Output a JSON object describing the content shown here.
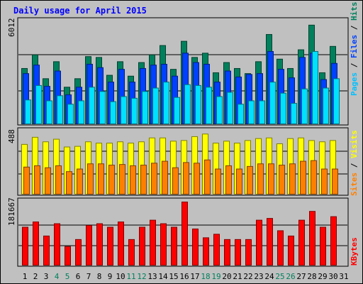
{
  "chart_data": [
    {
      "type": "bar",
      "panel": "hits-files-pages",
      "title": "Daily usage for April 2015",
      "max_label": "6012",
      "categories": [
        "1",
        "2",
        "3",
        "4",
        "5",
        "6",
        "7",
        "8",
        "9",
        "10",
        "11",
        "12",
        "13",
        "14",
        "15",
        "16",
        "17",
        "18",
        "19",
        "20",
        "21",
        "22",
        "23",
        "24",
        "25",
        "26",
        "27",
        "28",
        "29",
        "30",
        "31"
      ],
      "weekend_days": [
        "4",
        "5",
        "11",
        "12",
        "18",
        "19",
        "25",
        "26"
      ],
      "ylim": [
        0,
        6012
      ],
      "series": [
        {
          "name": "Hits",
          "color": "#00805c",
          "values": [
            3300,
            4100,
            2700,
            3700,
            2200,
            2700,
            4000,
            3950,
            2900,
            3700,
            2850,
            3650,
            4100,
            4650,
            3250,
            4900,
            3950,
            4200,
            3050,
            3650,
            3300,
            3000,
            3700,
            5300,
            3850,
            3300,
            4400,
            5850,
            3050,
            4600,
            0
          ]
        },
        {
          "name": "Files",
          "color": "#0040ff",
          "values": [
            3000,
            3500,
            2250,
            3150,
            1750,
            2200,
            3550,
            3350,
            2500,
            3250,
            2500,
            3300,
            3500,
            3550,
            2850,
            4200,
            3650,
            3550,
            2500,
            3150,
            2800,
            2950,
            3000,
            4300,
            3250,
            2750,
            3950,
            4200,
            2650,
            3600,
            0
          ]
        },
        {
          "name": "Pages",
          "color": "#00e0ff",
          "values": [
            1450,
            2300,
            1400,
            1700,
            1200,
            1400,
            2200,
            1950,
            1350,
            1650,
            1550,
            1950,
            2150,
            2500,
            1600,
            2350,
            2300,
            2200,
            1650,
            1900,
            1200,
            1400,
            1400,
            2500,
            1850,
            1250,
            2100,
            4300,
            2150,
            2700,
            0
          ]
        }
      ]
    },
    {
      "type": "bar",
      "panel": "visits-sites",
      "max_label": "488",
      "categories": [
        "1",
        "2",
        "3",
        "4",
        "5",
        "6",
        "7",
        "8",
        "9",
        "10",
        "11",
        "12",
        "13",
        "14",
        "15",
        "16",
        "17",
        "18",
        "19",
        "20",
        "21",
        "22",
        "23",
        "24",
        "25",
        "26",
        "27",
        "28",
        "29",
        "30",
        "31"
      ],
      "ylim": [
        0,
        488
      ],
      "series": [
        {
          "name": "Visits",
          "color": "#ffff00",
          "values": [
            390,
            445,
            410,
            430,
            370,
            375,
            410,
            400,
            400,
            410,
            400,
            410,
            440,
            440,
            415,
            420,
            450,
            470,
            400,
            415,
            400,
            420,
            435,
            440,
            395,
            435,
            440,
            420,
            410,
            420,
            0
          ]
        },
        {
          "name": "Sites",
          "color": "#ff8000",
          "values": [
            215,
            225,
            210,
            225,
            180,
            200,
            240,
            240,
            230,
            235,
            225,
            230,
            245,
            260,
            210,
            250,
            245,
            270,
            200,
            225,
            200,
            220,
            240,
            240,
            230,
            240,
            260,
            265,
            200,
            200,
            0
          ]
        }
      ]
    },
    {
      "type": "bar",
      "panel": "kbytes",
      "max_label": "181667",
      "categories": [
        "1",
        "2",
        "3",
        "4",
        "5",
        "6",
        "7",
        "8",
        "9",
        "10",
        "11",
        "12",
        "13",
        "14",
        "15",
        "16",
        "17",
        "18",
        "19",
        "20",
        "21",
        "22",
        "23",
        "24",
        "25",
        "26",
        "27",
        "28",
        "29",
        "30",
        "31"
      ],
      "ylim": [
        0,
        181667
      ],
      "series": [
        {
          "name": "KBytes",
          "color": "#ff0000",
          "values": [
            110000,
            125000,
            85000,
            120000,
            55000,
            75000,
            115000,
            120000,
            110000,
            125000,
            75000,
            110000,
            130000,
            120000,
            110000,
            181667,
            105000,
            80000,
            90000,
            75000,
            75000,
            75000,
            130000,
            135000,
            100000,
            85000,
            130000,
            155000,
            110000,
            140000,
            0
          ]
        }
      ]
    }
  ]
}
